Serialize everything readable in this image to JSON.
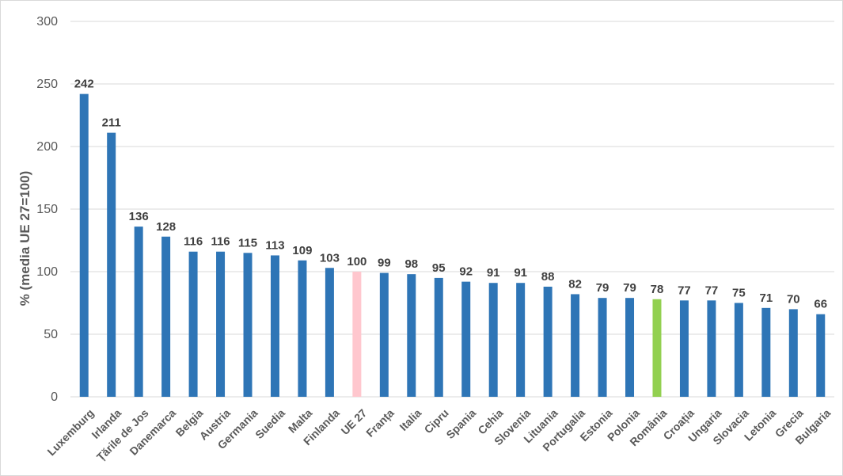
{
  "chart_data": {
    "type": "bar",
    "title": "",
    "xlabel": "",
    "ylabel": "% (media UE 27=100)",
    "ylim": [
      0,
      300
    ],
    "yticks": [
      0,
      50,
      100,
      150,
      200,
      250,
      300
    ],
    "grid": true,
    "legend": "none",
    "categories": [
      "Luxemburg",
      "Irlanda",
      "Țările de Jos",
      "Danemarca",
      "Belgia",
      "Austria",
      "Germania",
      "Suedia",
      "Malta",
      "Finlanda",
      "UE 27",
      "Franța",
      "Italia",
      "Cipru",
      "Spania",
      "Cehia",
      "Slovenia",
      "Lituania",
      "Portugalia",
      "Estonia",
      "Polonia",
      "România",
      "Croația",
      "Ungaria",
      "Slovacia",
      "Letonia",
      "Grecia",
      "Bulgaria"
    ],
    "values": [
      242,
      211,
      136,
      128,
      116,
      116,
      115,
      113,
      109,
      103,
      100,
      99,
      98,
      95,
      92,
      91,
      91,
      88,
      82,
      79,
      79,
      78,
      77,
      77,
      75,
      71,
      70,
      66
    ],
    "colors": {
      "default": "#2e75b6",
      "highlight": {
        "UE 27": "#ffc7ce",
        "România": "#92d050"
      }
    }
  }
}
